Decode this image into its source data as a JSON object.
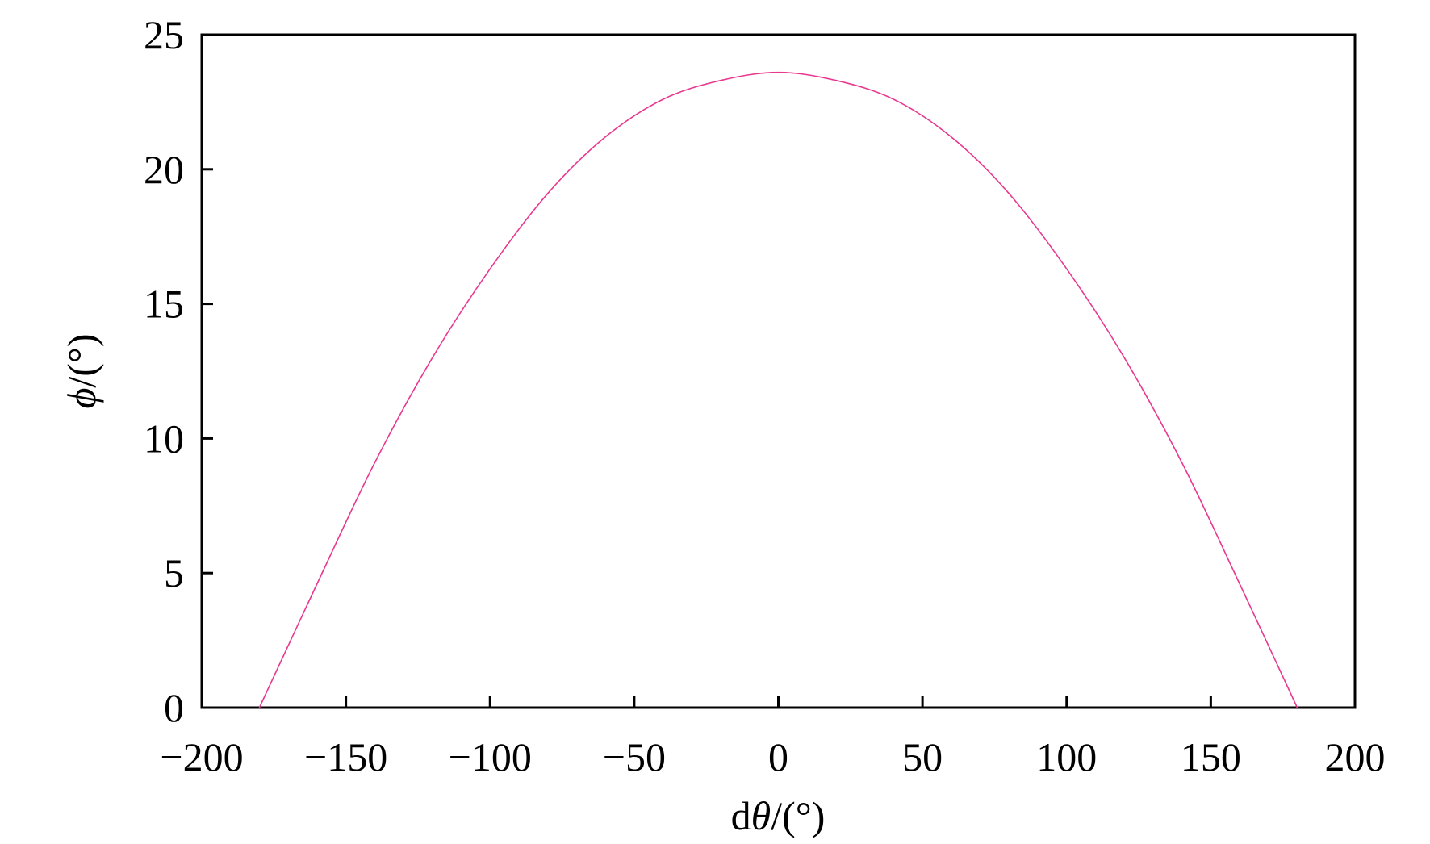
{
  "chart_data": {
    "type": "line",
    "title": "",
    "xlabel": {
      "prefix": "d",
      "symbol": "θ",
      "unit": "/(°)"
    },
    "ylabel": {
      "symbol": "ϕ",
      "unit": "/(°)"
    },
    "xlim": [
      -200,
      200
    ],
    "ylim": [
      0,
      25
    ],
    "xticks": [
      "−200",
      "−150",
      "−100",
      "−50",
      "0",
      "50",
      "100",
      "150",
      "200"
    ],
    "xtick_values": [
      -200,
      -150,
      -100,
      -50,
      0,
      50,
      100,
      150,
      200
    ],
    "yticks": [
      "0",
      "5",
      "10",
      "15",
      "20",
      "25"
    ],
    "ytick_values": [
      0,
      5,
      10,
      15,
      20,
      25
    ],
    "grid": false,
    "legend": "none",
    "series": [
      {
        "color": "#e8388f",
        "x": [
          -180,
          -160,
          -140,
          -120,
          -100,
          -80,
          -60,
          -40,
          -20,
          0,
          20,
          40,
          60,
          80,
          100,
          120,
          140,
          160,
          180
        ],
        "y": [
          0,
          4.6,
          9.1,
          13.0,
          16.3,
          19.1,
          21.2,
          22.6,
          23.3,
          23.6,
          23.3,
          22.6,
          21.2,
          19.1,
          16.3,
          13.0,
          9.1,
          4.6,
          0
        ]
      }
    ]
  }
}
